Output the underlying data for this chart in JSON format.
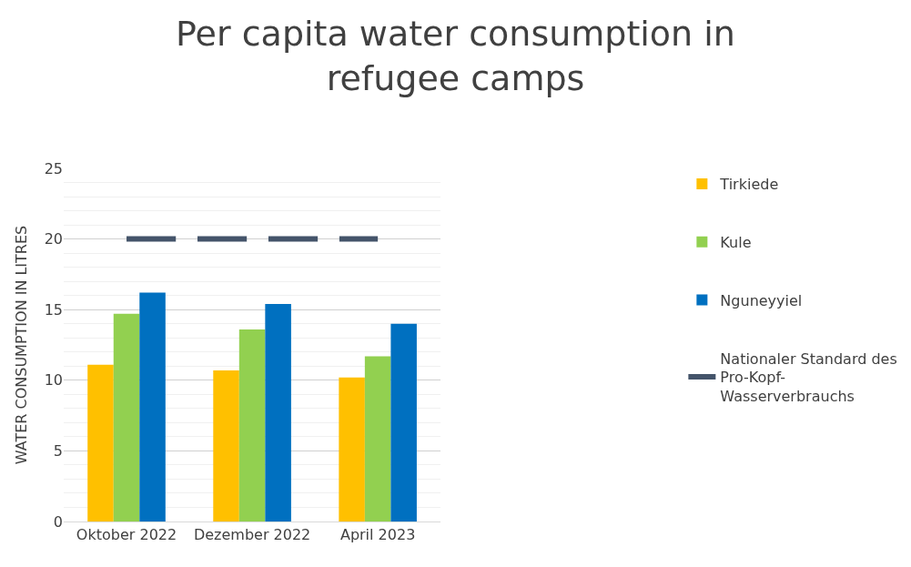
{
  "chart_data": {
    "type": "bar",
    "title": "Per capita water consumption in refugee camps",
    "ylabel": "WATER CONSUMPTION IN LITRES",
    "categories": [
      "Oktober 2022",
      "Dezember 2022",
      "April 2023"
    ],
    "series": [
      {
        "name": "Tirkiede",
        "color": "#ffc000",
        "values": [
          11.1,
          10.7,
          10.2
        ]
      },
      {
        "name": "Kule",
        "color": "#92d050",
        "values": [
          14.7,
          13.6,
          11.7
        ]
      },
      {
        "name": "Nguneyyiel",
        "color": "#0070c0",
        "values": [
          16.2,
          15.4,
          14.0
        ]
      },
      {
        "name": "Nationaler Standard des Pro-Kopf-Wasserverbrauchs",
        "type": "line",
        "line_style": "dashed",
        "color": "#44546a",
        "values": [
          20,
          20,
          20
        ]
      }
    ],
    "ylim": [
      0,
      25
    ],
    "yticks": [
      0,
      5,
      10,
      15,
      20,
      25
    ],
    "grid": "y",
    "legend": "right"
  }
}
